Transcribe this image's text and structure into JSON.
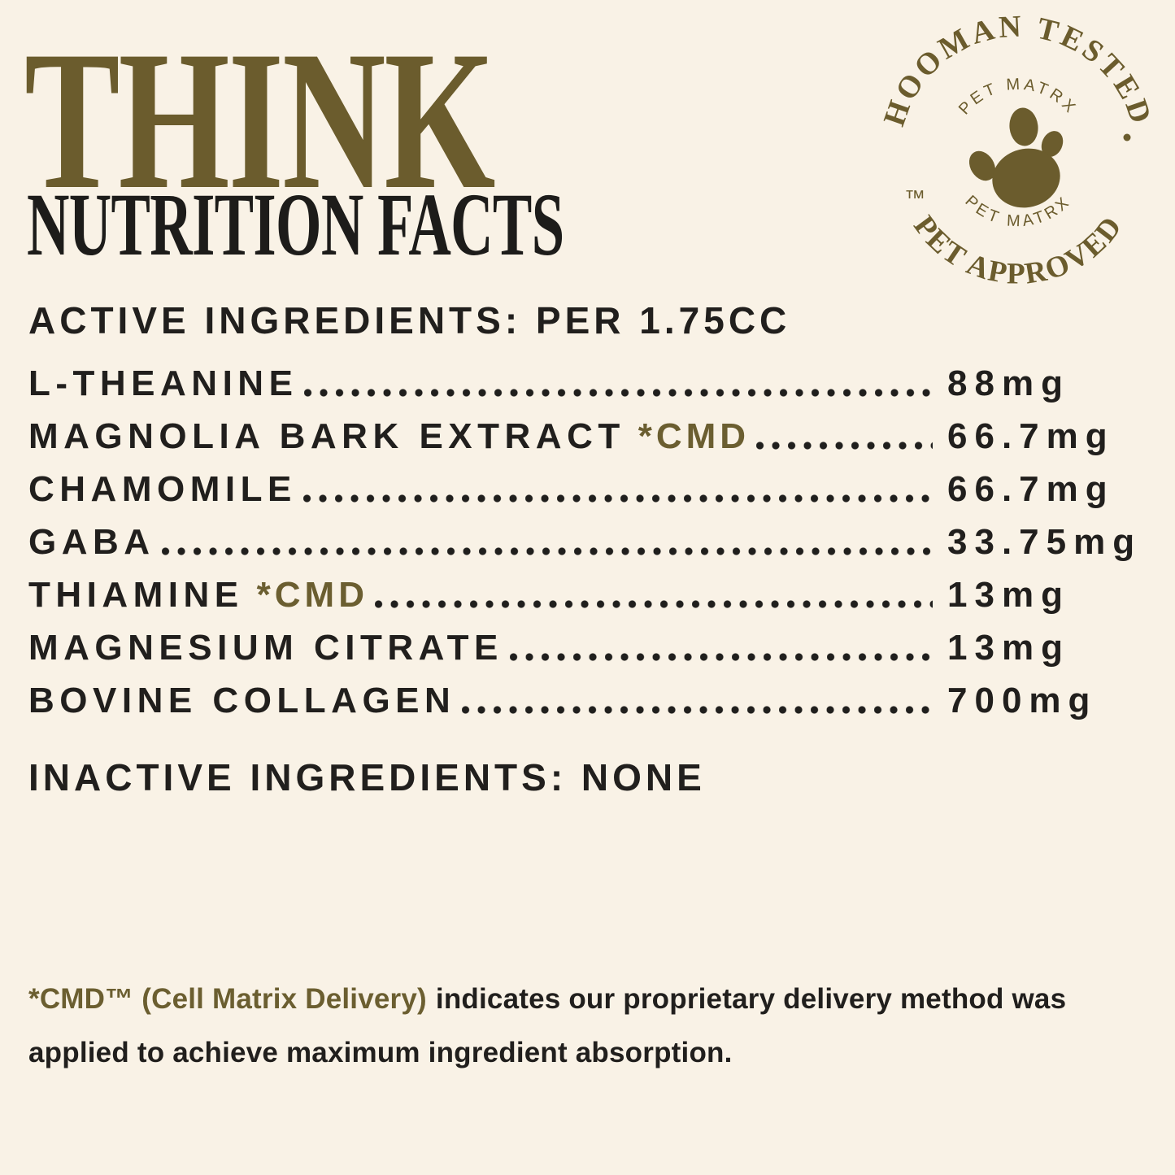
{
  "page": {
    "background_color": "#f9f2e6",
    "accent_olive": "#6b5c2d",
    "text_black": "#211f1d"
  },
  "title": {
    "brand": "THINK",
    "heading": "NUTRITION FACTS"
  },
  "badge": {
    "top_text": "HOOMAN TESTED",
    "bottom_text": "PET APPROVED",
    "inner_top_text": "PET MATRX",
    "inner_bottom_text": "PET MATRX",
    "trademark": "™",
    "separator_dot": "·",
    "icon": "paw-print-icon"
  },
  "active": {
    "header": "ACTIVE INGREDIENTS: PER 1.75CC",
    "cmd_label": "*CMD",
    "rows": [
      {
        "name": "L-THEANINE",
        "cmd": false,
        "value": "88mg"
      },
      {
        "name": "MAGNOLIA BARK EXTRACT",
        "cmd": true,
        "value": "66.7mg"
      },
      {
        "name": "CHAMOMILE",
        "cmd": false,
        "value": "66.7mg"
      },
      {
        "name": "GABA",
        "cmd": false,
        "value": "33.75mg"
      },
      {
        "name": "THIAMINE",
        "cmd": true,
        "value": "13mg"
      },
      {
        "name": "MAGNESIUM CITRATE",
        "cmd": false,
        "value": "13mg"
      },
      {
        "name": "BOVINE COLLAGEN",
        "cmd": false,
        "value": "700mg"
      }
    ]
  },
  "inactive": {
    "header": "INACTIVE INGREDIENTS: NONE"
  },
  "footnote": {
    "highlight": "*CMD™ (Cell Matrix Delivery)",
    "rest_line1": "indicates our proprietary delivery method was",
    "line2": "applied to achieve maximum ingredient absorption."
  }
}
